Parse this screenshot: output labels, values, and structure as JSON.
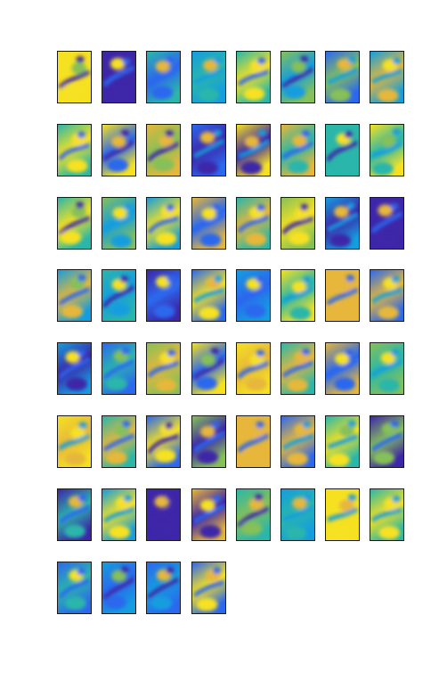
{
  "figure": {
    "panel_count": 60,
    "grid_columns": 8,
    "grid_rows": 8,
    "colormap": "parula",
    "colormap_stops": [
      "#3e26a8",
      "#2c68ee",
      "#149ddf",
      "#2bb6aa",
      "#86c059",
      "#e6b73a",
      "#f6e121"
    ]
  }
}
